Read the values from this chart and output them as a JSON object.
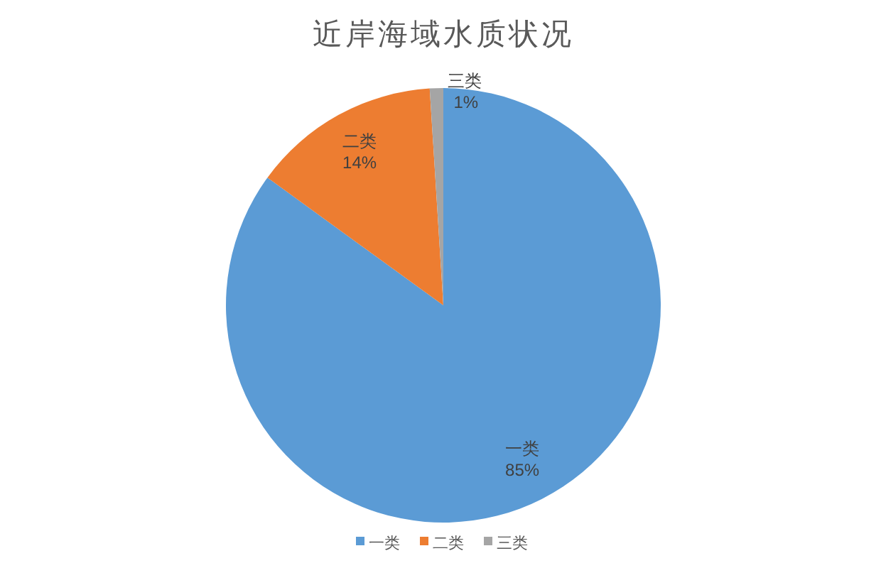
{
  "chart_data": {
    "type": "pie",
    "title": "近岸海域水质状况",
    "categories": [
      "一类",
      "二类",
      "三类"
    ],
    "values": [
      85,
      14,
      1
    ],
    "value_labels": [
      "85%",
      "14%",
      "1%"
    ],
    "colors": [
      "#5b9bd5",
      "#ed7d31",
      "#a5a5a5"
    ],
    "legend": "bottom"
  }
}
